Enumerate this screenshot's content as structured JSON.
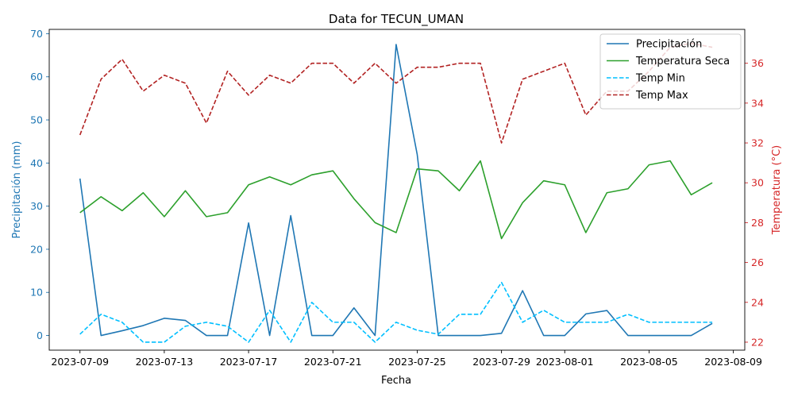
{
  "chart_data": {
    "type": "line",
    "title": "Data for TECUN_UMAN",
    "xlabel": "Fecha",
    "ylabel_left": "Precipitación (mm)",
    "ylabel_right": "Temperatura (°C)",
    "ylim_left": [
      -3.4,
      71
    ],
    "ylim_right": [
      21.6,
      37.7
    ],
    "yticks_left": [
      0,
      10,
      20,
      30,
      40,
      50,
      60,
      70
    ],
    "yticks_right": [
      22,
      24,
      26,
      28,
      30,
      32,
      34,
      36
    ],
    "xlim": [
      "2023-07-07T13:00",
      "2023-08-09T13:00"
    ],
    "xticks": [
      "2023-07-09",
      "2023-07-13",
      "2023-07-17",
      "2023-07-21",
      "2023-07-25",
      "2023-07-29",
      "2023-08-01",
      "2023-08-05",
      "2023-08-09"
    ],
    "left_axis_color": "#1f77b4",
    "right_axis_color": "#d62728",
    "legend_position": "top-right",
    "grid": false,
    "x": [
      "2023-07-09",
      "2023-07-10",
      "2023-07-11",
      "2023-07-12",
      "2023-07-13",
      "2023-07-14",
      "2023-07-15",
      "2023-07-16",
      "2023-07-17",
      "2023-07-18",
      "2023-07-19",
      "2023-07-20",
      "2023-07-21",
      "2023-07-22",
      "2023-07-23",
      "2023-07-24",
      "2023-07-25",
      "2023-07-26",
      "2023-07-27",
      "2023-07-28",
      "2023-07-29",
      "2023-07-30",
      "2023-07-31",
      "2023-08-01",
      "2023-08-02",
      "2023-08-03",
      "2023-08-04",
      "2023-08-05",
      "2023-08-06",
      "2023-08-07",
      "2023-08-08"
    ],
    "series": [
      {
        "name": "Precipitación",
        "axis": "left",
        "color": "#1f77b4",
        "dash": "solid",
        "values": [
          36.4,
          0,
          1.1,
          2.3,
          4.0,
          3.5,
          0,
          0,
          26.1,
          0,
          27.8,
          0,
          0,
          6.4,
          0,
          67.5,
          42.0,
          0,
          0,
          0,
          0.5,
          10.4,
          0,
          0,
          5.0,
          5.8,
          0,
          0,
          0,
          0,
          2.8
        ]
      },
      {
        "name": "Temperatura Seca",
        "axis": "right",
        "color": "#2ca02c",
        "dash": "solid",
        "values": [
          28.5,
          29.3,
          28.6,
          29.5,
          28.3,
          29.6,
          28.3,
          28.5,
          29.9,
          30.3,
          29.9,
          30.4,
          30.6,
          29.2,
          28.0,
          27.5,
          30.7,
          30.6,
          29.6,
          31.1,
          27.2,
          29.0,
          30.1,
          29.9,
          27.5,
          29.5,
          29.7,
          30.9,
          31.1,
          29.4,
          30.0
        ]
      },
      {
        "name": "Temp Min",
        "axis": "right",
        "color": "#00bfff",
        "dash": "dashed",
        "values": [
          22.4,
          23.4,
          23.0,
          22.0,
          22.0,
          22.8,
          23.0,
          22.8,
          22.0,
          23.6,
          22.0,
          24.0,
          23.0,
          23.0,
          22.0,
          23.0,
          22.6,
          22.4,
          23.4,
          23.4,
          25.0,
          23.0,
          23.6,
          23.0,
          23.0,
          23.0,
          23.4,
          23.0,
          23.0,
          23.0,
          23.0
        ]
      },
      {
        "name": "Temp Max",
        "axis": "right",
        "color": "#b22222",
        "dash": "dashed",
        "values": [
          32.4,
          35.2,
          36.2,
          34.6,
          35.4,
          35.0,
          33.0,
          35.6,
          34.4,
          35.4,
          35.0,
          36.0,
          36.0,
          35.0,
          36.0,
          35.0,
          35.8,
          35.8,
          36.0,
          36.0,
          32.0,
          35.2,
          35.6,
          36.0,
          33.4,
          34.6,
          34.6,
          35.6,
          36.8,
          37.0,
          36.8
        ]
      }
    ]
  }
}
